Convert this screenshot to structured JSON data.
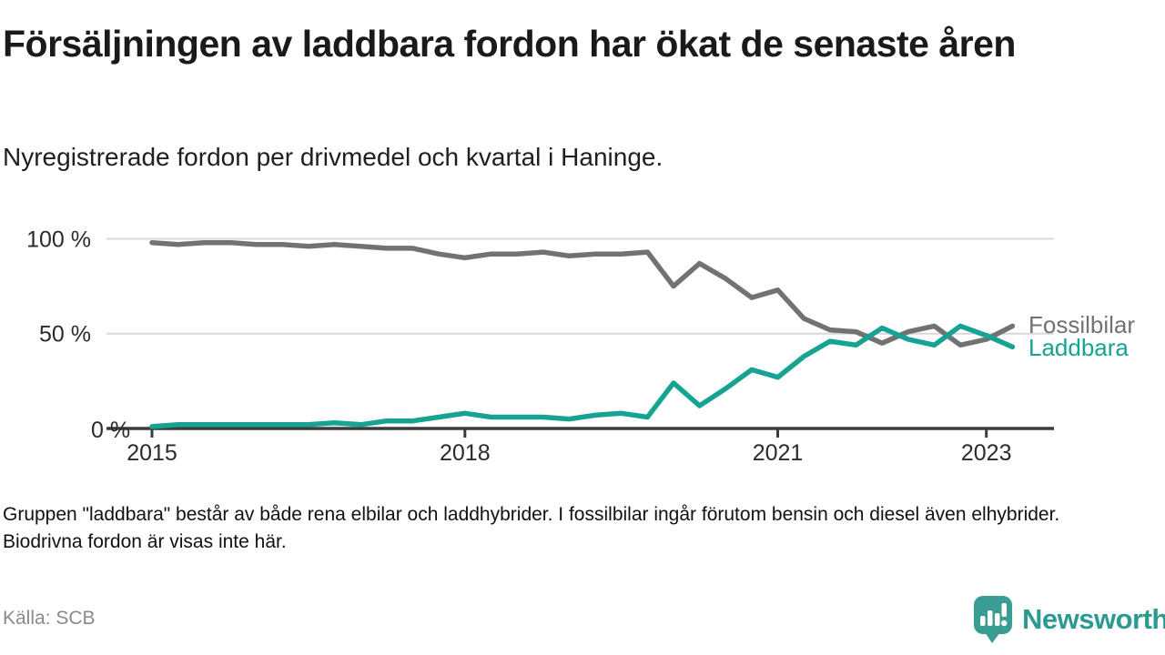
{
  "header": {
    "title": "Försäljningen av laddbara fordon har ökat de senaste åren",
    "subtitle": "Nyregistrerade fordon per drivmedel och kvartal i Haninge."
  },
  "chart_data": {
    "type": "line",
    "title": "Nyregistrerade fordon per drivmedel och kvartal i Haninge",
    "x_unit": "quarter",
    "quarters": [
      "2015 Q1",
      "2015 Q2",
      "2015 Q3",
      "2015 Q4",
      "2016 Q1",
      "2016 Q2",
      "2016 Q3",
      "2016 Q4",
      "2017 Q1",
      "2017 Q2",
      "2017 Q3",
      "2017 Q4",
      "2018 Q1",
      "2018 Q2",
      "2018 Q3",
      "2018 Q4",
      "2019 Q1",
      "2019 Q2",
      "2019 Q3",
      "2019 Q4",
      "2020 Q1",
      "2020 Q2",
      "2020 Q3",
      "2020 Q4",
      "2021 Q1",
      "2021 Q2",
      "2021 Q3",
      "2021 Q4",
      "2022 Q1",
      "2022 Q2",
      "2022 Q3",
      "2022 Q4",
      "2023 Q1",
      "2023 Q2"
    ],
    "x_tick_labels": [
      "2015",
      "2018",
      "2021",
      "2023"
    ],
    "y_tick_labels": [
      "100 %",
      "50 %",
      "0 %"
    ],
    "ylim": [
      0,
      100
    ],
    "grid": "horizontal-at-50-and-100",
    "legend_position": "right-end-of-lines",
    "series": [
      {
        "name": "Fossilbilar",
        "color": "#727274",
        "values": [
          98,
          97,
          98,
          98,
          97,
          97,
          96,
          97,
          96,
          95,
          95,
          92,
          90,
          92,
          92,
          93,
          91,
          92,
          92,
          93,
          75,
          87,
          79,
          69,
          73,
          58,
          52,
          51,
          45,
          51,
          54,
          44,
          47,
          54
        ]
      },
      {
        "name": "Laddbara",
        "color": "#17a392",
        "values": [
          1,
          2,
          2,
          2,
          2,
          2,
          2,
          3,
          2,
          4,
          4,
          6,
          8,
          6,
          6,
          6,
          5,
          7,
          8,
          6,
          24,
          12,
          21,
          31,
          27,
          38,
          46,
          44,
          53,
          47,
          44,
          54,
          49,
          43
        ]
      }
    ]
  },
  "footer": {
    "note": "Gruppen \"laddbara\" består av både rena elbilar och laddhybrider. I fossilbilar ingår förutom bensin och diesel även elhybrider. Biodrivna fordon är visas inte här.",
    "source": "Källa: SCB",
    "logo_text": "Newsworthy"
  },
  "colors": {
    "fossil_line": "#727274",
    "laddbara_line": "#17a392",
    "gridline": "#d9d9d9",
    "axis": "#3b3b3b",
    "text": "#1a1a1a",
    "muted_text": "#8a8a8a",
    "logo_teal": "#3a9d94"
  }
}
